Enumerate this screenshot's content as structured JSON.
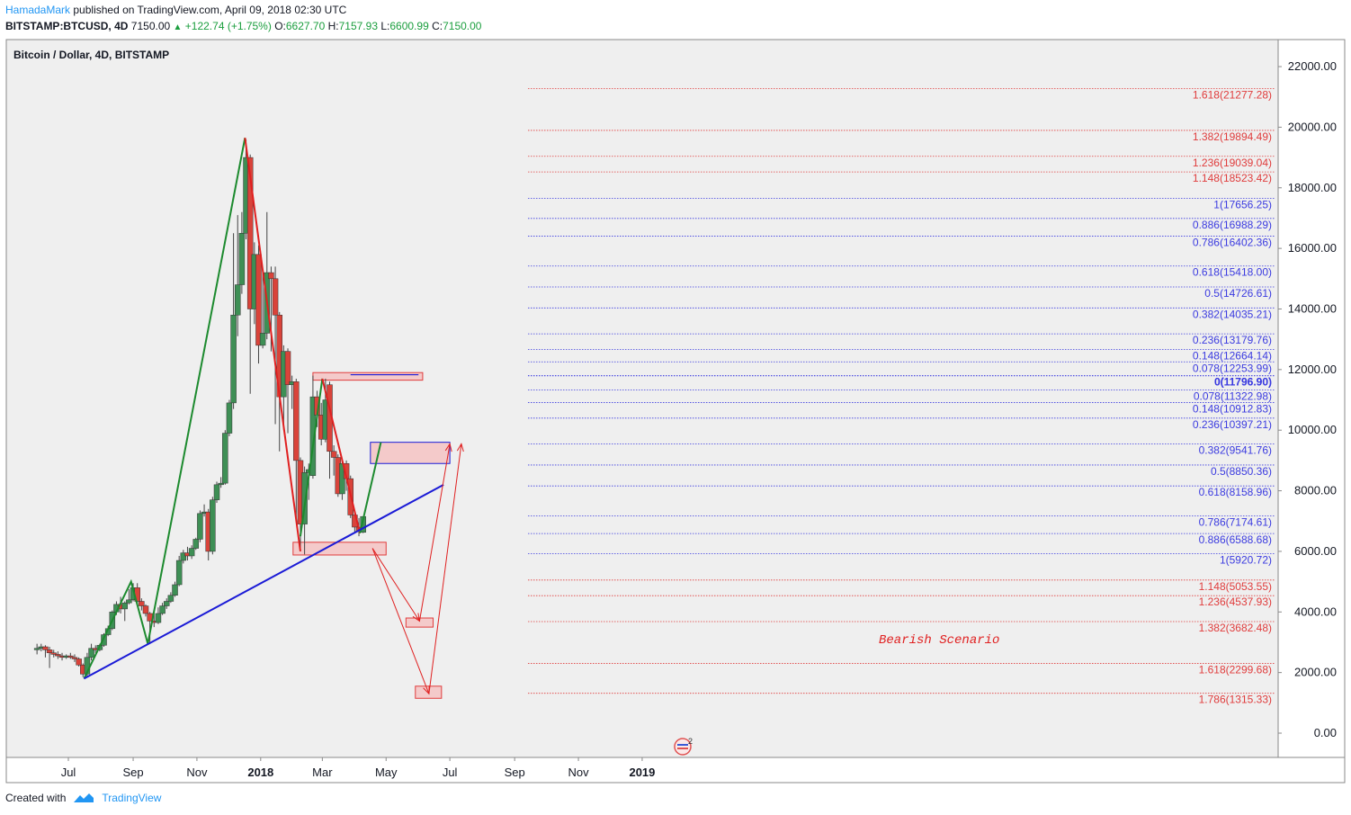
{
  "header": {
    "author": "HamadaMark",
    "published_text": "published on TradingView.com, April 09, 2018 02:30 UTC",
    "symbol": "BITSTAMP:BTCUSD, 4D",
    "last": "7150.00",
    "change": "+122.74 (+1.75%)",
    "o_label": "O:",
    "o": "6627.70",
    "h_label": "H:",
    "h": "7157.93",
    "l_label": "L:",
    "l": "6600.99",
    "c_label": "C:",
    "c": "7150.00"
  },
  "footer": {
    "created_with": "Created with",
    "brand": "TradingView"
  },
  "colors": {
    "up": "#3e8f55",
    "down": "#d9433a",
    "blue": "#1a1ad6",
    "fib_red": "#e03c3c",
    "fib_blue": "#3b3be0",
    "zone_fill": "#f4caca"
  },
  "chart_data": {
    "type": "candlestick",
    "title": "Bitcoin / Dollar, 4D, BITSTAMP",
    "ylim": [
      -1000,
      22600
    ],
    "yticks": [
      "22000.00",
      "20000.00",
      "18000.00",
      "16000.00",
      "14000.00",
      "12000.00",
      "10000.00",
      "8000.00",
      "6000.00",
      "4000.00",
      "2000.00",
      "0.00"
    ],
    "ytick_values": [
      22000,
      20000,
      18000,
      16000,
      14000,
      12000,
      10000,
      8000,
      6000,
      4000,
      2000,
      0
    ],
    "xticks": [
      {
        "label": "Jul",
        "date": "2017-07-01",
        "bold": false
      },
      {
        "label": "Sep",
        "date": "2017-09-01",
        "bold": false
      },
      {
        "label": "Nov",
        "date": "2017-11-01",
        "bold": false
      },
      {
        "label": "2018",
        "date": "2018-01-01",
        "bold": true
      },
      {
        "label": "Mar",
        "date": "2018-03-01",
        "bold": false
      },
      {
        "label": "May",
        "date": "2018-05-01",
        "bold": false
      },
      {
        "label": "Jul",
        "date": "2018-07-01",
        "bold": false
      },
      {
        "label": "Sep",
        "date": "2018-09-01",
        "bold": false
      },
      {
        "label": "Nov",
        "date": "2018-11-01",
        "bold": false
      },
      {
        "label": "2019",
        "date": "2019-01-01",
        "bold": true
      }
    ],
    "candles": [
      {
        "d": "2017-06-01",
        "o": 2750,
        "h": 2950,
        "l": 2600,
        "c": 2800
      },
      {
        "d": "2017-06-05",
        "o": 2800,
        "h": 2950,
        "l": 2700,
        "c": 2850
      },
      {
        "d": "2017-06-09",
        "o": 2850,
        "h": 2900,
        "l": 2500,
        "c": 2750
      },
      {
        "d": "2017-06-13",
        "o": 2750,
        "h": 2850,
        "l": 2150,
        "c": 2650
      },
      {
        "d": "2017-06-17",
        "o": 2650,
        "h": 2750,
        "l": 2500,
        "c": 2600
      },
      {
        "d": "2017-06-21",
        "o": 2600,
        "h": 2700,
        "l": 2450,
        "c": 2550
      },
      {
        "d": "2017-06-25",
        "o": 2550,
        "h": 2650,
        "l": 2400,
        "c": 2500
      },
      {
        "d": "2017-06-29",
        "o": 2500,
        "h": 2600,
        "l": 2450,
        "c": 2550
      },
      {
        "d": "2017-07-03",
        "o": 2550,
        "h": 2650,
        "l": 2450,
        "c": 2500
      },
      {
        "d": "2017-07-07",
        "o": 2500,
        "h": 2600,
        "l": 2350,
        "c": 2450
      },
      {
        "d": "2017-07-11",
        "o": 2450,
        "h": 2500,
        "l": 2200,
        "c": 2250
      },
      {
        "d": "2017-07-15",
        "o": 2250,
        "h": 2300,
        "l": 1850,
        "c": 1950
      },
      {
        "d": "2017-07-19",
        "o": 1950,
        "h": 2650,
        "l": 1850,
        "c": 2500
      },
      {
        "d": "2017-07-23",
        "o": 2500,
        "h": 2950,
        "l": 2400,
        "c": 2800
      },
      {
        "d": "2017-07-27",
        "o": 2800,
        "h": 2900,
        "l": 2650,
        "c": 2750
      },
      {
        "d": "2017-07-31",
        "o": 2750,
        "h": 2950,
        "l": 2700,
        "c": 2900
      },
      {
        "d": "2017-08-04",
        "o": 2900,
        "h": 3300,
        "l": 2850,
        "c": 3250
      },
      {
        "d": "2017-08-08",
        "o": 3250,
        "h": 3550,
        "l": 3200,
        "c": 3450
      },
      {
        "d": "2017-08-12",
        "o": 3450,
        "h": 4050,
        "l": 3400,
        "c": 4000
      },
      {
        "d": "2017-08-16",
        "o": 4000,
        "h": 4350,
        "l": 3900,
        "c": 4250
      },
      {
        "d": "2017-08-20",
        "o": 4250,
        "h": 4500,
        "l": 3950,
        "c": 4100
      },
      {
        "d": "2017-08-24",
        "o": 4100,
        "h": 4350,
        "l": 3700,
        "c": 4300
      },
      {
        "d": "2017-08-28",
        "o": 4300,
        "h": 4750,
        "l": 4250,
        "c": 4400
      },
      {
        "d": "2017-09-01",
        "o": 4400,
        "h": 4950,
        "l": 4350,
        "c": 4800
      },
      {
        "d": "2017-09-05",
        "o": 4800,
        "h": 4950,
        "l": 4200,
        "c": 4350
      },
      {
        "d": "2017-09-09",
        "o": 4350,
        "h": 4450,
        "l": 4050,
        "c": 4200
      },
      {
        "d": "2017-09-13",
        "o": 4200,
        "h": 4250,
        "l": 3850,
        "c": 3950
      },
      {
        "d": "2017-09-17",
        "o": 3950,
        "h": 4000,
        "l": 3000,
        "c": 3700
      },
      {
        "d": "2017-09-21",
        "o": 3700,
        "h": 3950,
        "l": 3500,
        "c": 3650
      },
      {
        "d": "2017-09-25",
        "o": 3650,
        "h": 4150,
        "l": 3600,
        "c": 3950
      },
      {
        "d": "2017-09-29",
        "o": 3950,
        "h": 4300,
        "l": 3900,
        "c": 4200
      },
      {
        "d": "2017-10-03",
        "o": 4200,
        "h": 4450,
        "l": 4100,
        "c": 4350
      },
      {
        "d": "2017-10-07",
        "o": 4350,
        "h": 4650,
        "l": 4300,
        "c": 4550
      },
      {
        "d": "2017-10-11",
        "o": 4550,
        "h": 5000,
        "l": 4500,
        "c": 4900
      },
      {
        "d": "2017-10-15",
        "o": 4900,
        "h": 5850,
        "l": 4850,
        "c": 5700
      },
      {
        "d": "2017-10-19",
        "o": 5700,
        "h": 6050,
        "l": 5600,
        "c": 5950
      },
      {
        "d": "2017-10-23",
        "o": 5950,
        "h": 6150,
        "l": 5700,
        "c": 5850
      },
      {
        "d": "2017-10-27",
        "o": 5850,
        "h": 6200,
        "l": 5750,
        "c": 6100
      },
      {
        "d": "2017-10-31",
        "o": 6100,
        "h": 6450,
        "l": 6050,
        "c": 6400
      },
      {
        "d": "2017-11-04",
        "o": 6400,
        "h": 7350,
        "l": 6300,
        "c": 7250
      },
      {
        "d": "2017-11-08",
        "o": 7250,
        "h": 7550,
        "l": 7150,
        "c": 7300
      },
      {
        "d": "2017-11-12",
        "o": 7300,
        "h": 7400,
        "l": 5700,
        "c": 6000
      },
      {
        "d": "2017-11-16",
        "o": 6000,
        "h": 7800,
        "l": 5900,
        "c": 7700
      },
      {
        "d": "2017-11-20",
        "o": 7700,
        "h": 8300,
        "l": 7600,
        "c": 8200
      },
      {
        "d": "2017-11-24",
        "o": 8200,
        "h": 8450,
        "l": 8100,
        "c": 8250
      },
      {
        "d": "2017-11-28",
        "o": 8250,
        "h": 10000,
        "l": 8200,
        "c": 9900
      },
      {
        "d": "2017-12-02",
        "o": 9900,
        "h": 11000,
        "l": 9800,
        "c": 10900
      },
      {
        "d": "2017-12-06",
        "o": 10900,
        "h": 16500,
        "l": 10700,
        "c": 13800
      },
      {
        "d": "2017-12-10",
        "o": 13800,
        "h": 17100,
        "l": 13100,
        "c": 14800
      },
      {
        "d": "2017-12-14",
        "o": 14800,
        "h": 17200,
        "l": 14500,
        "c": 16500
      },
      {
        "d": "2017-12-18",
        "o": 16500,
        "h": 19600,
        "l": 16300,
        "c": 19000
      },
      {
        "d": "2017-12-22",
        "o": 19000,
        "h": 19100,
        "l": 11200,
        "c": 14000
      },
      {
        "d": "2017-12-26",
        "o": 14000,
        "h": 16200,
        "l": 13500,
        "c": 15800
      },
      {
        "d": "2017-12-30",
        "o": 15800,
        "h": 16100,
        "l": 12200,
        "c": 12800
      },
      {
        "d": "2018-01-03",
        "o": 12800,
        "h": 15300,
        "l": 12700,
        "c": 13200
      },
      {
        "d": "2018-01-07",
        "o": 13200,
        "h": 17200,
        "l": 13000,
        "c": 15200
      },
      {
        "d": "2018-01-11",
        "o": 15200,
        "h": 15400,
        "l": 12600,
        "c": 15000
      },
      {
        "d": "2018-01-15",
        "o": 15000,
        "h": 15400,
        "l": 10200,
        "c": 13800
      },
      {
        "d": "2018-01-19",
        "o": 13800,
        "h": 13900,
        "l": 9300,
        "c": 11100
      },
      {
        "d": "2018-01-23",
        "o": 11100,
        "h": 12800,
        "l": 10000,
        "c": 12600
      },
      {
        "d": "2018-01-27",
        "o": 12600,
        "h": 12700,
        "l": 9900,
        "c": 11500
      },
      {
        "d": "2018-01-31",
        "o": 11500,
        "h": 11800,
        "l": 10700,
        "c": 11600
      },
      {
        "d": "2018-02-04",
        "o": 11600,
        "h": 11700,
        "l": 7000,
        "c": 9000
      },
      {
        "d": "2018-02-08",
        "o": 9000,
        "h": 9100,
        "l": 6000,
        "c": 6900
      },
      {
        "d": "2018-02-12",
        "o": 6900,
        "h": 8800,
        "l": 5900,
        "c": 8600
      },
      {
        "d": "2018-02-16",
        "o": 8600,
        "h": 8900,
        "l": 7700,
        "c": 8700
      },
      {
        "d": "2018-02-20",
        "o": 8500,
        "h": 11800,
        "l": 8400,
        "c": 11100
      },
      {
        "d": "2018-02-24",
        "o": 11100,
        "h": 11300,
        "l": 10100,
        "c": 10500
      },
      {
        "d": "2018-02-28",
        "o": 10500,
        "h": 10900,
        "l": 9500,
        "c": 9700
      },
      {
        "d": "2018-03-04",
        "o": 9700,
        "h": 11700,
        "l": 9600,
        "c": 11000
      },
      {
        "d": "2018-03-08",
        "o": 11500,
        "h": 11600,
        "l": 8400,
        "c": 9300
      },
      {
        "d": "2018-03-12",
        "o": 9300,
        "h": 9500,
        "l": 8500,
        "c": 9100
      },
      {
        "d": "2018-03-16",
        "o": 9100,
        "h": 9200,
        "l": 7800,
        "c": 7900
      },
      {
        "d": "2018-03-20",
        "o": 7900,
        "h": 9000,
        "l": 7700,
        "c": 8900
      },
      {
        "d": "2018-03-24",
        "o": 8900,
        "h": 9000,
        "l": 8000,
        "c": 8400
      },
      {
        "d": "2018-03-28",
        "o": 8400,
        "h": 8500,
        "l": 7100,
        "c": 7200
      },
      {
        "d": "2018-04-01",
        "o": 7200,
        "h": 7300,
        "l": 6600,
        "c": 6800
      },
      {
        "d": "2018-04-05",
        "o": 6800,
        "h": 7100,
        "l": 6500,
        "c": 6650
      },
      {
        "d": "2018-04-09",
        "o": 6627.7,
        "h": 7157.93,
        "l": 6600.99,
        "c": 7150
      }
    ],
    "fib_levels": [
      {
        "label": "1.618(21277.28)",
        "value": 21277.28,
        "color": "red"
      },
      {
        "label": "1.382(19894.49)",
        "value": 19894.49,
        "color": "red"
      },
      {
        "label": "1.236(19039.04)",
        "value": 19039.04,
        "color": "red"
      },
      {
        "label": "1.148(18523.42)",
        "value": 18523.42,
        "color": "red"
      },
      {
        "label": "1(17656.25)",
        "value": 17656.25,
        "color": "blue"
      },
      {
        "label": "0.886(16988.29)",
        "value": 16988.29,
        "color": "blue"
      },
      {
        "label": "0.786(16402.36)",
        "value": 16402.36,
        "color": "blue"
      },
      {
        "label": "0.618(15418.00)",
        "value": 15418.0,
        "color": "blue"
      },
      {
        "label": "0.5(14726.61)",
        "value": 14726.61,
        "color": "blue"
      },
      {
        "label": "0.382(14035.21)",
        "value": 14035.21,
        "color": "blue"
      },
      {
        "label": "0.236(13179.76)",
        "value": 13179.76,
        "color": "blue"
      },
      {
        "label": "0.148(12664.14)",
        "value": 12664.14,
        "color": "blue"
      },
      {
        "label": "0.078(12253.99)",
        "value": 12253.99,
        "color": "blue"
      },
      {
        "label": "0(11796.90)",
        "value": 11796.9,
        "color": "blue"
      },
      {
        "label": "0(11796.90)",
        "value": 11796.9,
        "color": "blue"
      },
      {
        "label": "0.078(11322.98)",
        "value": 11322.98,
        "color": "blue"
      },
      {
        "label": "0.148(10912.83)",
        "value": 10912.83,
        "color": "blue"
      },
      {
        "label": "0.236(10397.21)",
        "value": 10397.21,
        "color": "blue"
      },
      {
        "label": "0.382(9541.76)",
        "value": 9541.76,
        "color": "blue"
      },
      {
        "label": "0.5(8850.36)",
        "value": 8850.36,
        "color": "blue"
      },
      {
        "label": "0.618(8158.96)",
        "value": 8158.96,
        "color": "blue"
      },
      {
        "label": "0.786(7174.61)",
        "value": 7174.61,
        "color": "blue"
      },
      {
        "label": "0.886(6588.68)",
        "value": 6588.68,
        "color": "blue"
      },
      {
        "label": "1(5920.72)",
        "value": 5920.72,
        "color": "blue"
      },
      {
        "label": "1.148(5053.55)",
        "value": 5053.55,
        "color": "red"
      },
      {
        "label": "1.236(4537.93)",
        "value": 4537.93,
        "color": "red"
      },
      {
        "label": "1.382(3682.48)",
        "value": 3682.48,
        "color": "red"
      },
      {
        "label": "1.618(2299.68)",
        "value": 2299.68,
        "color": "red"
      },
      {
        "label": "1.786(1315.33)",
        "value": 1315.33,
        "color": "red"
      }
    ],
    "zigzag_up": [
      {
        "d": "2017-07-16",
        "v": 1800
      },
      {
        "d": "2017-08-30",
        "v": 5000
      },
      {
        "d": "2017-09-15",
        "v": 2950
      },
      {
        "d": "2017-12-17",
        "v": 19650
      }
    ],
    "zigzag_down_1": [
      {
        "d": "2017-12-17",
        "v": 19650
      },
      {
        "d": "2018-02-08",
        "v": 6000
      }
    ],
    "zigzag_up_2": [
      {
        "d": "2018-02-08",
        "v": 6500
      },
      {
        "d": "2018-03-01",
        "v": 11700
      }
    ],
    "zigzag_down_2": [
      {
        "d": "2018-03-01",
        "v": 11700
      },
      {
        "d": "2018-04-06",
        "v": 6600
      }
    ],
    "projection_up": [
      {
        "d": "2018-04-06",
        "v": 6600
      },
      {
        "d": "2018-04-26",
        "v": 9600
      }
    ],
    "trendline": [
      {
        "d": "2017-07-16",
        "v": 1800
      },
      {
        "d": "2018-06-25",
        "v": 8200
      }
    ],
    "zones": [
      {
        "name": "zone-resistance-top",
        "d1": "2018-02-20",
        "d2": "2018-06-05",
        "v1": 11900,
        "v2": 11650,
        "kind": "red"
      },
      {
        "name": "zone-target-blue",
        "d1": "2018-04-16",
        "d2": "2018-07-01",
        "v1": 9600,
        "v2": 8900,
        "kind": "blue"
      },
      {
        "name": "zone-support",
        "d1": "2018-02-01",
        "d2": "2018-05-01",
        "v1": 6300,
        "v2": 5880,
        "kind": "red"
      },
      {
        "name": "zone-target-3682",
        "d1": "2018-05-20",
        "d2": "2018-06-15",
        "v1": 3800,
        "v2": 3500,
        "kind": "red"
      },
      {
        "name": "zone-target-1315",
        "d1": "2018-05-29",
        "d2": "2018-06-23",
        "v1": 1550,
        "v2": 1150,
        "kind": "red"
      }
    ],
    "inner_blue_line": {
      "d1": "2018-03-28",
      "d2": "2018-06-01",
      "v": 11830
    },
    "scenario_arrows": [
      {
        "from": {
          "d": "2018-04-18",
          "v": 6100
        },
        "to": {
          "d": "2018-06-02",
          "v": 3700
        }
      },
      {
        "from": {
          "d": "2018-06-02",
          "v": 3700
        },
        "to": {
          "d": "2018-07-01",
          "v": 9550
        }
      },
      {
        "from": {
          "d": "2018-04-18",
          "v": 6100
        },
        "to": {
          "d": "2018-06-11",
          "v": 1300
        }
      },
      {
        "from": {
          "d": "2018-06-11",
          "v": 1300
        },
        "to": {
          "d": "2018-07-12",
          "v": 9550
        }
      }
    ],
    "annotation": "Bearish Scenario",
    "event_badge_count": "2"
  }
}
